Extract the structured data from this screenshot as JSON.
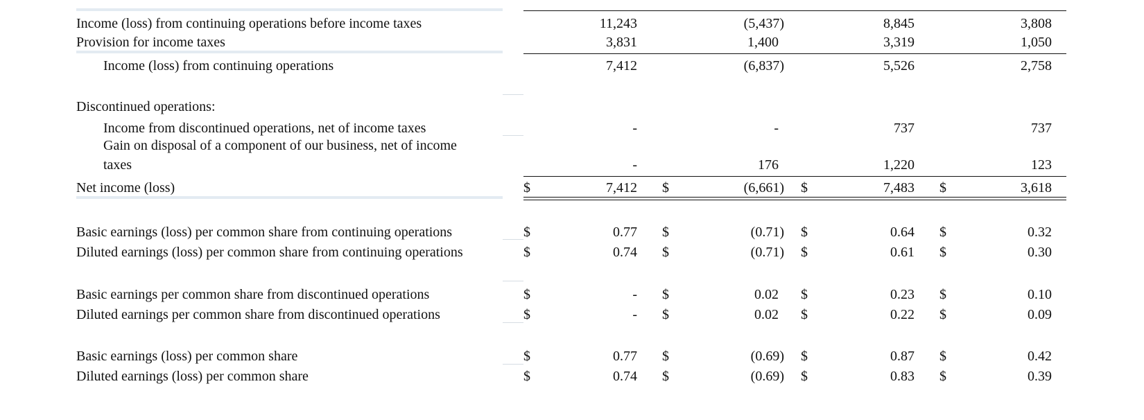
{
  "rows": {
    "pretax": {
      "label": "Income (loss) from continuing operations before income taxes",
      "values": [
        "11,243",
        "(5,437)",
        "8,845",
        "3,808"
      ]
    },
    "provision": {
      "label": "Provision for income taxes",
      "values": [
        "3,831",
        "1,400",
        "3,319",
        "1,050"
      ]
    },
    "cont_ops": {
      "label": "Income (loss) from continuing operations",
      "values": [
        "7,412",
        "(6,837)",
        "5,526",
        "2,758"
      ]
    },
    "disc_header": {
      "label": "Discontinued operations:"
    },
    "disc_income": {
      "label": "Income from discontinued operations, net of income taxes",
      "values": [
        "-",
        "-",
        "737",
        "737"
      ]
    },
    "gain_disposal": {
      "label_line1": "Gain on disposal of a component of our business, net of income",
      "label_line2": "taxes",
      "values": [
        "-",
        "176",
        "1,220",
        "123"
      ]
    },
    "net_income": {
      "label": "Net income (loss)",
      "currency": "$",
      "values": [
        "7,412",
        "(6,661)",
        "7,483",
        "3,618"
      ]
    },
    "basic_cont": {
      "label": "Basic earnings (loss) per common share from continuing operations",
      "currency": "$",
      "values": [
        "0.77",
        "(0.71)",
        "0.64",
        "0.32"
      ]
    },
    "diluted_cont": {
      "label": "Diluted earnings (loss) per common share from continuing operations",
      "currency": "$",
      "values": [
        "0.74",
        "(0.71)",
        "0.61",
        "0.30"
      ]
    },
    "basic_disc": {
      "label": "Basic earnings per common share from discontinued operations",
      "currency": "$",
      "values": [
        "-",
        "0.02",
        "0.23",
        "0.10"
      ]
    },
    "diluted_disc": {
      "label": "Diluted earnings per common share from discontinued operations",
      "currency": "$",
      "values": [
        "-",
        "0.02",
        "0.22",
        "0.09"
      ]
    },
    "basic_total": {
      "label": "Basic earnings (loss) per common share",
      "currency": "$",
      "values": [
        "0.77",
        "(0.69)",
        "0.87",
        "0.42"
      ]
    },
    "diluted_total": {
      "label": "Diluted earnings (loss) per common share",
      "currency": "$",
      "values": [
        "0.74",
        "(0.69)",
        "0.83",
        "0.39"
      ]
    }
  }
}
